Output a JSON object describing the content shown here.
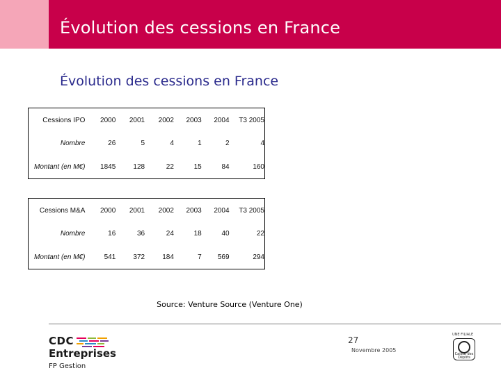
{
  "slide": {
    "header_title": "Évolution des cessions en France",
    "subtitle": "Évolution des cessions en France",
    "source": "Source: Venture Source (Venture One)",
    "page_number": "27",
    "date": "Novembre 2005"
  },
  "ipo_table": {
    "header": [
      "Cessions IPO",
      "2000",
      "2001",
      "2002",
      "2003",
      "2004",
      "T3 2005"
    ],
    "rows": [
      {
        "label": "Nombre",
        "values": [
          "26",
          "5",
          "4",
          "1",
          "2",
          "4"
        ]
      },
      {
        "label": "Montant (en M€)",
        "values": [
          "1845",
          "128",
          "22",
          "15",
          "84",
          "160"
        ]
      }
    ]
  },
  "ma_table": {
    "header": [
      "Cessions M&A",
      "2000",
      "2001",
      "2002",
      "2003",
      "2004",
      "T3 2005"
    ],
    "rows": [
      {
        "label": "Nombre",
        "values": [
          "16",
          "36",
          "24",
          "18",
          "40",
          "22"
        ]
      },
      {
        "label": "Montant (en M€)",
        "values": [
          "541",
          "372",
          "184",
          "7",
          "569",
          "294"
        ]
      }
    ]
  },
  "footer": {
    "logo_line1": "CDC",
    "logo_line2": "Entreprises",
    "logo_line3": "FP Gestion",
    "filiale_label": "UNE FILIALE",
    "cdc_logo_text": "Caisse des Dépôts"
  },
  "colors": {
    "header_bar": "#c8004a",
    "header_tab": "#f5a6b8",
    "subtitle": "#2a2a8c"
  }
}
